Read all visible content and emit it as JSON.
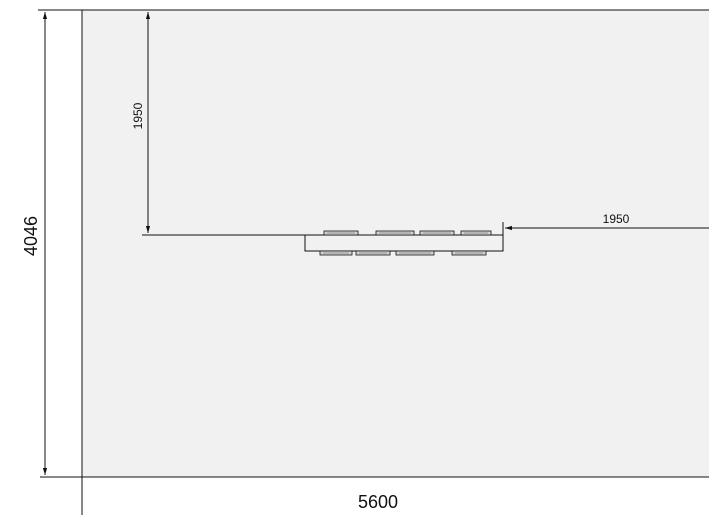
{
  "drawing": {
    "colors": {
      "background": "#ffffff",
      "floor_fill": "#f1f1f1",
      "line": "#111111"
    },
    "dimensions": {
      "total_height": "4046",
      "total_width": "5600",
      "offset_from_top": "1950",
      "offset_from_right": "1950"
    },
    "bench": {
      "top_seats": 4,
      "bottom_seats": 4
    }
  }
}
